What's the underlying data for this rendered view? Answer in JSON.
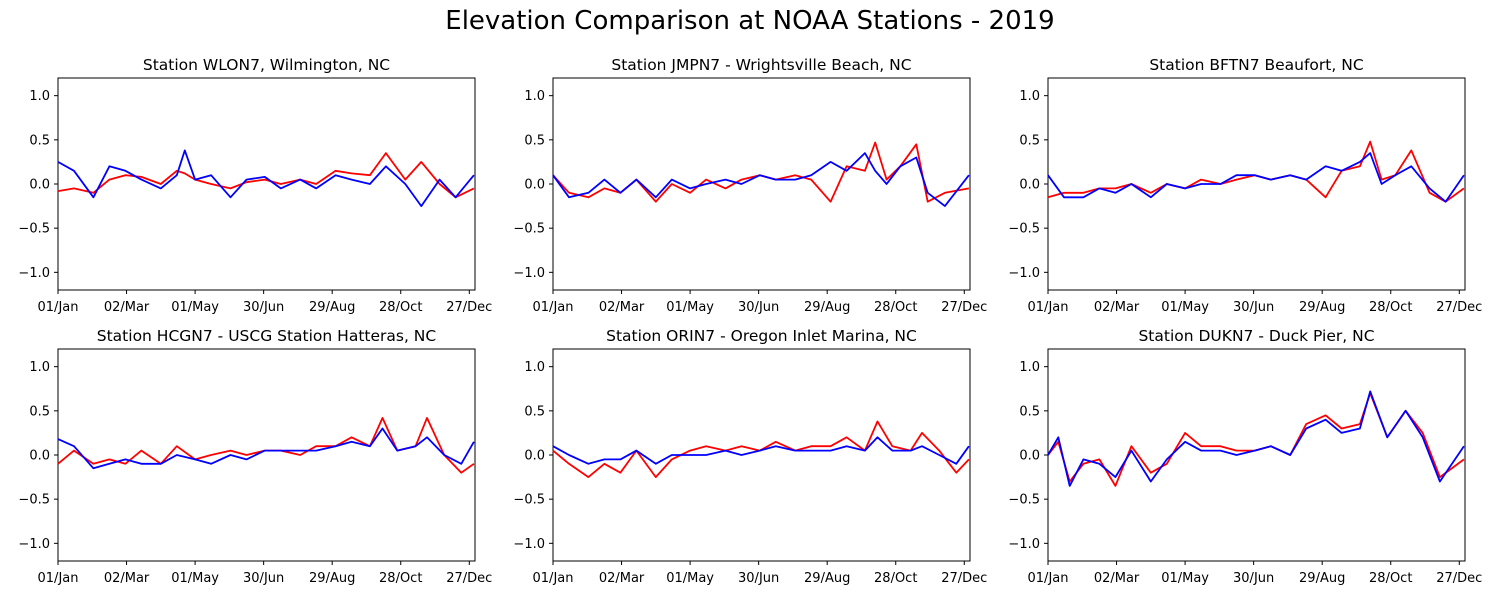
{
  "figure": {
    "title": "Elevation Comparison at NOAA Stations - 2019",
    "series_colors": [
      "#ff0000",
      "#0000ff"
    ]
  },
  "chart_data": [
    {
      "type": "line",
      "title": "Station WLON7, Wilmington, NC",
      "xlabel": "",
      "ylabel": "",
      "xlim": [
        "2019-01-01",
        "2020-01-01"
      ],
      "ylim": [
        -1.2,
        1.2
      ],
      "x_ticks": [
        "01/Jan",
        "02/Mar",
        "01/May",
        "30/Jun",
        "29/Aug",
        "28/Oct",
        "27/Dec"
      ],
      "y_ticks": [
        "1.0",
        "0.5",
        "0.0",
        "−0.5",
        "−1.0"
      ],
      "x": [
        "2019-01-01",
        "2019-01-15",
        "2019-02-01",
        "2019-02-15",
        "2019-03-01",
        "2019-03-15",
        "2019-04-01",
        "2019-04-15",
        "2019-04-22",
        "2019-05-01",
        "2019-05-15",
        "2019-06-01",
        "2019-06-15",
        "2019-07-01",
        "2019-07-15",
        "2019-08-01",
        "2019-08-15",
        "2019-09-01",
        "2019-09-15",
        "2019-10-01",
        "2019-10-15",
        "2019-11-01",
        "2019-11-15",
        "2019-12-01",
        "2019-12-15",
        "2019-12-31"
      ],
      "series": [
        {
          "color": "#ff0000",
          "values": [
            -0.08,
            -0.05,
            -0.1,
            0.05,
            0.1,
            0.08,
            0.0,
            0.15,
            0.12,
            0.05,
            0.0,
            -0.05,
            0.02,
            0.05,
            0.0,
            0.05,
            0.0,
            0.15,
            0.12,
            0.1,
            0.35,
            0.05,
            0.25,
            0.0,
            -0.15,
            -0.05
          ]
        },
        {
          "color": "#0000ff",
          "values": [
            0.25,
            0.15,
            -0.15,
            0.2,
            0.15,
            0.05,
            -0.05,
            0.1,
            0.38,
            0.05,
            0.1,
            -0.15,
            0.05,
            0.08,
            -0.05,
            0.05,
            -0.05,
            0.1,
            0.05,
            0.0,
            0.2,
            0.0,
            -0.25,
            0.05,
            -0.15,
            0.1
          ]
        }
      ]
    },
    {
      "type": "line",
      "title": "Station JMPN7 - Wrightsville Beach, NC",
      "xlabel": "",
      "ylabel": "",
      "xlim": [
        "2019-01-01",
        "2020-01-01"
      ],
      "ylim": [
        -1.2,
        1.2
      ],
      "x_ticks": [
        "01/Jan",
        "02/Mar",
        "01/May",
        "30/Jun",
        "29/Aug",
        "28/Oct",
        "27/Dec"
      ],
      "y_ticks": [
        "1.0",
        "0.5",
        "0.0",
        "−0.5",
        "−1.0"
      ],
      "x": [
        "2019-01-01",
        "2019-01-15",
        "2019-02-01",
        "2019-02-15",
        "2019-03-01",
        "2019-03-15",
        "2019-04-01",
        "2019-04-15",
        "2019-05-01",
        "2019-05-15",
        "2019-06-01",
        "2019-06-15",
        "2019-07-01",
        "2019-07-15",
        "2019-08-01",
        "2019-08-15",
        "2019-09-01",
        "2019-09-15",
        "2019-10-01",
        "2019-10-10",
        "2019-10-20",
        "2019-11-01",
        "2019-11-15",
        "2019-11-25",
        "2019-12-10",
        "2019-12-31"
      ],
      "series": [
        {
          "color": "#ff0000",
          "values": [
            0.1,
            -0.1,
            -0.15,
            -0.05,
            -0.1,
            0.05,
            -0.2,
            0.0,
            -0.1,
            0.05,
            -0.05,
            0.05,
            0.1,
            0.05,
            0.1,
            0.05,
            -0.2,
            0.2,
            0.15,
            0.47,
            0.05,
            0.2,
            0.45,
            -0.2,
            -0.1,
            -0.05
          ]
        },
        {
          "color": "#0000ff",
          "values": [
            0.1,
            -0.15,
            -0.1,
            0.05,
            -0.1,
            0.05,
            -0.15,
            0.05,
            -0.05,
            0.0,
            0.05,
            0.0,
            0.1,
            0.05,
            0.05,
            0.1,
            0.25,
            0.15,
            0.35,
            0.15,
            0.0,
            0.2,
            0.3,
            -0.1,
            -0.25,
            0.1
          ]
        }
      ]
    },
    {
      "type": "line",
      "title": "Station BFTN7 Beaufort, NC",
      "xlabel": "",
      "ylabel": "",
      "xlim": [
        "2019-01-01",
        "2020-01-01"
      ],
      "ylim": [
        -1.2,
        1.2
      ],
      "x_ticks": [
        "01/Jan",
        "02/Mar",
        "01/May",
        "30/Jun",
        "29/Aug",
        "28/Oct",
        "27/Dec"
      ],
      "y_ticks": [
        "1.0",
        "0.5",
        "0.0",
        "−0.5",
        "−1.0"
      ],
      "x": [
        "2019-01-01",
        "2019-01-15",
        "2019-02-01",
        "2019-02-15",
        "2019-03-01",
        "2019-03-15",
        "2019-04-01",
        "2019-04-15",
        "2019-05-01",
        "2019-05-15",
        "2019-06-01",
        "2019-06-15",
        "2019-07-01",
        "2019-07-15",
        "2019-08-01",
        "2019-08-15",
        "2019-09-01",
        "2019-09-15",
        "2019-10-01",
        "2019-10-10",
        "2019-10-20",
        "2019-11-01",
        "2019-11-15",
        "2019-12-01",
        "2019-12-15",
        "2019-12-31"
      ],
      "series": [
        {
          "color": "#ff0000",
          "values": [
            -0.15,
            -0.1,
            -0.1,
            -0.05,
            -0.05,
            0.0,
            -0.1,
            0.0,
            -0.05,
            0.05,
            0.0,
            0.05,
            0.1,
            0.05,
            0.1,
            0.05,
            -0.15,
            0.15,
            0.2,
            0.48,
            0.05,
            0.1,
            0.38,
            -0.1,
            -0.2,
            -0.05
          ]
        },
        {
          "color": "#0000ff",
          "values": [
            0.1,
            -0.15,
            -0.15,
            -0.05,
            -0.1,
            0.0,
            -0.15,
            0.0,
            -0.05,
            0.0,
            0.0,
            0.1,
            0.1,
            0.05,
            0.1,
            0.05,
            0.2,
            0.15,
            0.25,
            0.35,
            0.0,
            0.1,
            0.2,
            -0.05,
            -0.2,
            0.1
          ]
        }
      ]
    },
    {
      "type": "line",
      "title": "Station HCGN7 - USCG Station Hatteras, NC",
      "xlabel": "",
      "ylabel": "",
      "xlim": [
        "2019-01-01",
        "2020-01-01"
      ],
      "ylim": [
        -1.2,
        1.2
      ],
      "x_ticks": [
        "01/Jan",
        "02/Mar",
        "01/May",
        "30/Jun",
        "29/Aug",
        "28/Oct",
        "27/Dec"
      ],
      "y_ticks": [
        "1.0",
        "0.5",
        "0.0",
        "−0.5",
        "−1.0"
      ],
      "x": [
        "2019-01-01",
        "2019-01-15",
        "2019-02-01",
        "2019-02-15",
        "2019-03-01",
        "2019-03-15",
        "2019-04-01",
        "2019-04-15",
        "2019-05-01",
        "2019-05-15",
        "2019-06-01",
        "2019-06-15",
        "2019-07-01",
        "2019-07-15",
        "2019-08-01",
        "2019-08-15",
        "2019-09-01",
        "2019-09-15",
        "2019-10-01",
        "2019-10-12",
        "2019-10-25",
        "2019-11-10",
        "2019-11-20",
        "2019-12-05",
        "2019-12-20",
        "2019-12-31"
      ],
      "series": [
        {
          "color": "#ff0000",
          "values": [
            -0.1,
            0.05,
            -0.1,
            -0.05,
            -0.1,
            0.05,
            -0.1,
            0.1,
            -0.05,
            0.0,
            0.05,
            0.0,
            0.05,
            0.05,
            0.0,
            0.1,
            0.1,
            0.2,
            0.1,
            0.42,
            0.05,
            0.1,
            0.42,
            0.0,
            -0.2,
            -0.1
          ]
        },
        {
          "color": "#0000ff",
          "values": [
            0.18,
            0.1,
            -0.15,
            -0.1,
            -0.05,
            -0.1,
            -0.1,
            0.0,
            -0.05,
            -0.1,
            0.0,
            -0.05,
            0.05,
            0.05,
            0.05,
            0.05,
            0.1,
            0.15,
            0.1,
            0.3,
            0.05,
            0.1,
            0.2,
            0.0,
            -0.1,
            0.15
          ]
        }
      ]
    },
    {
      "type": "line",
      "title": "Station ORIN7 - Oregon Inlet Marina, NC",
      "xlabel": "",
      "ylabel": "",
      "xlim": [
        "2019-01-01",
        "2020-01-01"
      ],
      "ylim": [
        -1.2,
        1.2
      ],
      "x_ticks": [
        "01/Jan",
        "02/Mar",
        "01/May",
        "30/Jun",
        "29/Aug",
        "28/Oct",
        "27/Dec"
      ],
      "y_ticks": [
        "1.0",
        "0.5",
        "0.0",
        "−0.5",
        "−1.0"
      ],
      "x": [
        "2019-01-01",
        "2019-01-15",
        "2019-02-01",
        "2019-02-15",
        "2019-03-01",
        "2019-03-15",
        "2019-04-01",
        "2019-04-15",
        "2019-05-01",
        "2019-05-15",
        "2019-06-01",
        "2019-06-15",
        "2019-07-01",
        "2019-07-15",
        "2019-08-01",
        "2019-08-15",
        "2019-09-01",
        "2019-09-15",
        "2019-10-01",
        "2019-10-12",
        "2019-10-25",
        "2019-11-10",
        "2019-11-20",
        "2019-12-05",
        "2019-12-20",
        "2019-12-31"
      ],
      "series": [
        {
          "color": "#ff0000",
          "values": [
            0.05,
            -0.1,
            -0.25,
            -0.1,
            -0.2,
            0.05,
            -0.25,
            -0.05,
            0.05,
            0.1,
            0.05,
            0.1,
            0.05,
            0.15,
            0.05,
            0.1,
            0.1,
            0.2,
            0.05,
            0.38,
            0.1,
            0.05,
            0.25,
            0.05,
            -0.2,
            -0.05
          ]
        },
        {
          "color": "#0000ff",
          "values": [
            0.1,
            0.0,
            -0.1,
            -0.05,
            -0.05,
            0.05,
            -0.1,
            0.0,
            0.0,
            0.0,
            0.05,
            0.0,
            0.05,
            0.1,
            0.05,
            0.05,
            0.05,
            0.1,
            0.05,
            0.2,
            0.05,
            0.05,
            0.1,
            0.0,
            -0.1,
            0.1
          ]
        }
      ]
    },
    {
      "type": "line",
      "title": "Station DUKN7 - Duck Pier, NC",
      "xlabel": "",
      "ylabel": "",
      "xlim": [
        "2019-01-01",
        "2020-01-01"
      ],
      "ylim": [
        -1.2,
        1.2
      ],
      "x_ticks": [
        "01/Jan",
        "02/Mar",
        "01/May",
        "30/Jun",
        "29/Aug",
        "28/Oct",
        "27/Dec"
      ],
      "y_ticks": [
        "1.0",
        "0.5",
        "0.0",
        "−0.5",
        "−1.0"
      ],
      "x": [
        "2019-01-01",
        "2019-01-10",
        "2019-01-20",
        "2019-02-01",
        "2019-02-15",
        "2019-03-01",
        "2019-03-15",
        "2019-04-01",
        "2019-04-15",
        "2019-05-01",
        "2019-05-15",
        "2019-06-01",
        "2019-06-15",
        "2019-07-01",
        "2019-07-15",
        "2019-08-01",
        "2019-08-15",
        "2019-09-01",
        "2019-09-15",
        "2019-10-01",
        "2019-10-10",
        "2019-10-25",
        "2019-11-10",
        "2019-11-25",
        "2019-12-10",
        "2019-12-31"
      ],
      "series": [
        {
          "color": "#ff0000",
          "values": [
            0.0,
            0.15,
            -0.3,
            -0.1,
            -0.05,
            -0.35,
            0.1,
            -0.2,
            -0.1,
            0.25,
            0.1,
            0.1,
            0.05,
            0.05,
            0.1,
            0.0,
            0.35,
            0.45,
            0.3,
            0.35,
            0.7,
            0.2,
            0.5,
            0.25,
            -0.25,
            -0.05
          ]
        },
        {
          "color": "#0000ff",
          "values": [
            0.0,
            0.2,
            -0.35,
            -0.05,
            -0.1,
            -0.25,
            0.05,
            -0.3,
            -0.05,
            0.15,
            0.05,
            0.05,
            0.0,
            0.05,
            0.1,
            0.0,
            0.3,
            0.4,
            0.25,
            0.3,
            0.72,
            0.2,
            0.5,
            0.2,
            -0.3,
            0.1
          ]
        }
      ]
    }
  ]
}
